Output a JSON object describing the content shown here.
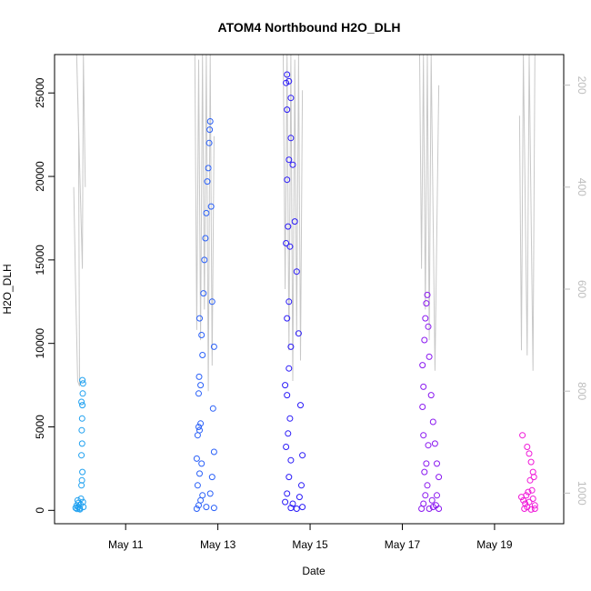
{
  "chart_data": {
    "type": "scatter",
    "title": "ATOM4 Northbound H2O_DLH",
    "xlabel": "Date",
    "ylabel": "H2O_DLH",
    "xlim": [
      "2018-05-09T11:00",
      "2018-05-20T12:00"
    ],
    "ylim": [
      -800,
      27300
    ],
    "x_ticks": [
      {
        "date": "2018-05-11",
        "label": "May 11"
      },
      {
        "date": "2018-05-13",
        "label": "May 13"
      },
      {
        "date": "2018-05-15",
        "label": "May 15"
      },
      {
        "date": "2018-05-17",
        "label": "May 17"
      },
      {
        "date": "2018-05-19",
        "label": "May 19"
      }
    ],
    "y_ticks": [
      0,
      5000,
      10000,
      15000,
      20000,
      25000
    ],
    "y2_ticks": [
      200,
      400,
      600,
      800,
      1000
    ],
    "y2lim": [
      1060,
      140
    ],
    "y2_color": "#bdbdbd",
    "grid": false,
    "legend": "none",
    "profile_color": "#c8c8c8",
    "point_colors": [
      "#1ea0f0",
      "#2a60f8",
      "#2a1af8",
      "#8a18f0",
      "#f018d8"
    ],
    "series": [
      {
        "points": [
          [
            "2018-05-09T22:00",
            150
          ],
          [
            "2018-05-09T22:30",
            300
          ],
          [
            "2018-05-09T23:00",
            600
          ],
          [
            "2018-05-09T23:30",
            450
          ],
          [
            "2018-05-09T22:45",
            80
          ],
          [
            "2018-05-09T23:15",
            200
          ],
          [
            "2018-05-10T00:00",
            120
          ],
          [
            "2018-05-10T00:30",
            350
          ],
          [
            "2018-05-10T00:45",
            700
          ],
          [
            "2018-05-10T01:00",
            1500
          ],
          [
            "2018-05-10T01:15",
            1800
          ],
          [
            "2018-05-10T01:30",
            2300
          ],
          [
            "2018-05-10T01:00",
            3300
          ],
          [
            "2018-05-10T01:20",
            4000
          ],
          [
            "2018-05-10T01:10",
            4800
          ],
          [
            "2018-05-10T01:20",
            5500
          ],
          [
            "2018-05-10T01:30",
            6300
          ],
          [
            "2018-05-10T01:00",
            6500
          ],
          [
            "2018-05-10T01:40",
            7000
          ],
          [
            "2018-05-10T01:50",
            7600
          ],
          [
            "2018-05-10T01:30",
            7800
          ],
          [
            "2018-05-10T02:00",
            200
          ],
          [
            "2018-05-10T01:45",
            500
          ],
          [
            "2018-05-10T00:15",
            60
          ]
        ]
      },
      {
        "points": [
          [
            "2018-05-12T13:00",
            100
          ],
          [
            "2018-05-12T14:00",
            300
          ],
          [
            "2018-05-12T15:00",
            600
          ],
          [
            "2018-05-12T16:00",
            900
          ],
          [
            "2018-05-12T13:30",
            1500
          ],
          [
            "2018-05-12T14:30",
            2200
          ],
          [
            "2018-05-12T15:30",
            2800
          ],
          [
            "2018-05-12T13:00",
            3100
          ],
          [
            "2018-05-12T13:30",
            4500
          ],
          [
            "2018-05-12T14:00",
            5000
          ],
          [
            "2018-05-12T14:30",
            4800
          ],
          [
            "2018-05-12T15:00",
            5200
          ],
          [
            "2018-05-12T14:00",
            7000
          ],
          [
            "2018-05-12T14:15",
            8000
          ],
          [
            "2018-05-12T15:00",
            7500
          ],
          [
            "2018-05-12T16:00",
            9300
          ],
          [
            "2018-05-12T15:30",
            10500
          ],
          [
            "2018-05-12T14:30",
            11500
          ],
          [
            "2018-05-12T16:30",
            13000
          ],
          [
            "2018-05-12T17:00",
            15000
          ],
          [
            "2018-05-12T17:30",
            16300
          ],
          [
            "2018-05-12T18:00",
            17800
          ],
          [
            "2018-05-12T18:30",
            19700
          ],
          [
            "2018-05-12T19:00",
            20500
          ],
          [
            "2018-05-12T19:30",
            22000
          ],
          [
            "2018-05-12T20:00",
            23300
          ],
          [
            "2018-05-12T19:45",
            22800
          ],
          [
            "2018-05-12T20:30",
            18200
          ],
          [
            "2018-05-12T21:00",
            12500
          ],
          [
            "2018-05-12T22:00",
            9800
          ],
          [
            "2018-05-12T21:30",
            6100
          ],
          [
            "2018-05-12T22:00",
            3500
          ],
          [
            "2018-05-12T21:00",
            2000
          ],
          [
            "2018-05-12T20:00",
            1000
          ],
          [
            "2018-05-12T22:00",
            150
          ],
          [
            "2018-05-12T18:00",
            200
          ]
        ]
      },
      {
        "points": [
          [
            "2018-05-14T11:00",
            500
          ],
          [
            "2018-05-14T12:00",
            1000
          ],
          [
            "2018-05-14T13:00",
            2000
          ],
          [
            "2018-05-14T14:00",
            3000
          ],
          [
            "2018-05-14T11:30",
            3800
          ],
          [
            "2018-05-14T12:30",
            4600
          ],
          [
            "2018-05-14T13:30",
            5500
          ],
          [
            "2018-05-14T12:00",
            6900
          ],
          [
            "2018-05-14T11:00",
            7500
          ],
          [
            "2018-05-14T13:00",
            8500
          ],
          [
            "2018-05-14T14:00",
            9800
          ],
          [
            "2018-05-14T12:00",
            11500
          ],
          [
            "2018-05-14T13:00",
            12500
          ],
          [
            "2018-05-14T11:30",
            16000
          ],
          [
            "2018-05-14T12:30",
            17000
          ],
          [
            "2018-05-14T13:30",
            15800
          ],
          [
            "2018-05-14T12:00",
            19800
          ],
          [
            "2018-05-14T13:00",
            21000
          ],
          [
            "2018-05-14T14:00",
            22300
          ],
          [
            "2018-05-14T12:00",
            24000
          ],
          [
            "2018-05-14T11:30",
            25600
          ],
          [
            "2018-05-14T12:00",
            26100
          ],
          [
            "2018-05-14T13:00",
            25700
          ],
          [
            "2018-05-14T14:00",
            24700
          ],
          [
            "2018-05-14T15:00",
            20700
          ],
          [
            "2018-05-14T16:00",
            17300
          ],
          [
            "2018-05-14T17:00",
            14300
          ],
          [
            "2018-05-14T18:00",
            10600
          ],
          [
            "2018-05-14T19:00",
            6300
          ],
          [
            "2018-05-14T20:00",
            3300
          ],
          [
            "2018-05-14T19:30",
            1500
          ],
          [
            "2018-05-14T18:30",
            800
          ],
          [
            "2018-05-14T20:00",
            200
          ],
          [
            "2018-05-14T17:00",
            100
          ],
          [
            "2018-05-14T14:00",
            150
          ],
          [
            "2018-05-14T15:00",
            400
          ]
        ]
      },
      {
        "points": [
          [
            "2018-05-17T10:00",
            100
          ],
          [
            "2018-05-17T11:00",
            400
          ],
          [
            "2018-05-17T12:00",
            900
          ],
          [
            "2018-05-17T13:00",
            1500
          ],
          [
            "2018-05-17T11:30",
            2300
          ],
          [
            "2018-05-17T12:30",
            2800
          ],
          [
            "2018-05-17T13:30",
            3900
          ],
          [
            "2018-05-17T11:00",
            4500
          ],
          [
            "2018-05-17T10:30",
            6200
          ],
          [
            "2018-05-17T11:00",
            7400
          ],
          [
            "2018-05-17T10:30",
            8700
          ],
          [
            "2018-05-17T11:30",
            10200
          ],
          [
            "2018-05-17T12:00",
            11500
          ],
          [
            "2018-05-17T12:30",
            12400
          ],
          [
            "2018-05-17T13:00",
            12900
          ],
          [
            "2018-05-17T13:30",
            11000
          ],
          [
            "2018-05-17T14:00",
            9200
          ],
          [
            "2018-05-17T15:00",
            6900
          ],
          [
            "2018-05-17T16:00",
            5300
          ],
          [
            "2018-05-17T17:00",
            4000
          ],
          [
            "2018-05-17T18:00",
            2800
          ],
          [
            "2018-05-17T19:00",
            2000
          ],
          [
            "2018-05-17T18:00",
            900
          ],
          [
            "2018-05-17T19:00",
            100
          ],
          [
            "2018-05-17T16:00",
            200
          ],
          [
            "2018-05-17T14:00",
            100
          ],
          [
            "2018-05-17T15:30",
            600
          ],
          [
            "2018-05-17T17:30",
            300
          ]
        ]
      },
      {
        "points": [
          [
            "2018-05-19T14:00",
            800
          ],
          [
            "2018-05-19T15:00",
            600
          ],
          [
            "2018-05-19T16:00",
            400
          ],
          [
            "2018-05-19T17:00",
            200
          ],
          [
            "2018-05-19T15:30",
            100
          ],
          [
            "2018-05-19T14:30",
            4500
          ],
          [
            "2018-05-19T17:00",
            3800
          ],
          [
            "2018-05-19T18:00",
            3400
          ],
          [
            "2018-05-19T19:00",
            2900
          ],
          [
            "2018-05-19T20:00",
            2300
          ],
          [
            "2018-05-19T18:30",
            1800
          ],
          [
            "2018-05-19T19:30",
            1200
          ],
          [
            "2018-05-19T20:00",
            700
          ],
          [
            "2018-05-19T21:00",
            300
          ],
          [
            "2018-05-19T16:30",
            900
          ],
          [
            "2018-05-19T18:00",
            500
          ],
          [
            "2018-05-19T20:30",
            2000
          ],
          [
            "2018-05-19T21:00",
            100
          ],
          [
            "2018-05-19T19:00",
            50
          ],
          [
            "2018-05-19T17:30",
            1100
          ]
        ]
      }
    ],
    "pressure_profiles": [
      [
        [
          "2018-05-09T21:00",
          400
        ],
        [
          "2018-05-09T22:00",
          600
        ],
        [
          "2018-05-09T23:00",
          780
        ],
        [
          "2018-05-10T00:00",
          790
        ],
        [
          "2018-05-09T23:30",
          290
        ],
        [
          "2018-05-09T22:30",
          140
        ],
        [
          "2018-05-10T00:30",
          420
        ],
        [
          "2018-05-10T01:30",
          560
        ],
        [
          "2018-05-10T02:00",
          140
        ],
        [
          "2018-05-10T03:00",
          400
        ]
      ],
      [
        [
          "2018-05-12T12:00",
          140
        ],
        [
          "2018-05-12T13:00",
          680
        ],
        [
          "2018-05-12T14:00",
          150
        ],
        [
          "2018-05-12T15:00",
          700
        ],
        [
          "2018-05-12T16:00",
          140
        ],
        [
          "2018-05-12T17:00",
          640
        ],
        [
          "2018-05-12T18:00",
          140
        ],
        [
          "2018-05-12T19:00",
          800
        ],
        [
          "2018-05-12T20:00",
          140
        ],
        [
          "2018-05-12T21:00",
          750
        ],
        [
          "2018-05-12T22:00",
          300
        ]
      ],
      [
        [
          "2018-05-14T10:00",
          140
        ],
        [
          "2018-05-14T11:00",
          600
        ],
        [
          "2018-05-14T12:00",
          140
        ],
        [
          "2018-05-14T13:00",
          720
        ],
        [
          "2018-05-14T14:00",
          140
        ],
        [
          "2018-05-14T15:00",
          780
        ],
        [
          "2018-05-14T16:00",
          150
        ],
        [
          "2018-05-14T17:00",
          690
        ],
        [
          "2018-05-14T18:00",
          140
        ],
        [
          "2018-05-14T19:00",
          740
        ],
        [
          "2018-05-14T20:00",
          210
        ]
      ],
      [
        [
          "2018-05-17T09:00",
          140
        ],
        [
          "2018-05-17T10:00",
          560
        ],
        [
          "2018-05-17T11:00",
          140
        ],
        [
          "2018-05-17T12:00",
          640
        ],
        [
          "2018-05-17T13:00",
          140
        ],
        [
          "2018-05-17T14:00",
          700
        ],
        [
          "2018-05-17T15:00",
          140
        ],
        [
          "2018-05-17T17:00",
          760
        ],
        [
          "2018-05-17T19:00",
          200
        ]
      ],
      [
        [
          "2018-05-19T13:00",
          260
        ],
        [
          "2018-05-19T14:00",
          720
        ],
        [
          "2018-05-19T15:00",
          140
        ],
        [
          "2018-05-19T17:00",
          730
        ],
        [
          "2018-05-19T18:00",
          140
        ],
        [
          "2018-05-19T20:00",
          760
        ],
        [
          "2018-05-19T21:00",
          140
        ]
      ]
    ]
  }
}
